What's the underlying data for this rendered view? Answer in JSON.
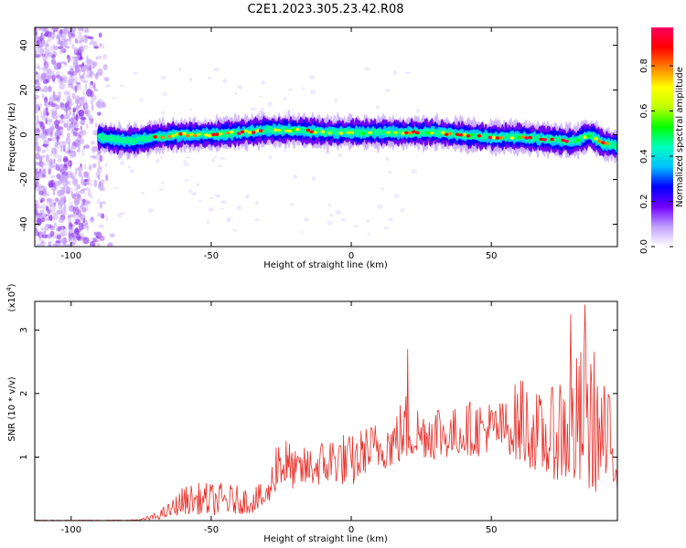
{
  "title": "C2E1.2023.305.23.42.R08",
  "chart_data": [
    {
      "type": "heatmap",
      "name": "spectrogram",
      "xlabel": "Height of straight line (km)",
      "ylabel": "Frequency (Hz)",
      "xlim": [
        -113,
        95
      ],
      "ylim": [
        -50,
        48
      ],
      "xticks": [
        -100,
        -50,
        0,
        50
      ],
      "yticks": [
        -40,
        -20,
        0,
        20,
        40
      ],
      "colorbar": {
        "label": "Normalized spectral amplitude",
        "range": [
          0,
          0.97
        ],
        "ticks": [
          0.0,
          0.2,
          0.4,
          0.6,
          0.8
        ],
        "tick_labels": [
          "0.0",
          "0.2",
          "0.4",
          "0.6",
          "0.8"
        ],
        "colormap": [
          "#ffffff",
          "#c0a0ff",
          "#7000ff",
          "#0000ff",
          "#00c0ff",
          "#00ffc0",
          "#00ff00",
          "#c0ff00",
          "#ffff00",
          "#ff8000",
          "#ff0000",
          "#ff0060"
        ]
      },
      "ridge": {
        "x": [
          -90,
          -80,
          -70,
          -60,
          -50,
          -40,
          -30,
          -20,
          -10,
          0,
          10,
          20,
          30,
          40,
          50,
          60,
          70,
          80,
          85,
          90,
          95
        ],
        "freq": [
          -1,
          -3,
          -1,
          0,
          0,
          1,
          2,
          2,
          1,
          1,
          1,
          1,
          1,
          0,
          -1,
          -1,
          -2,
          -3,
          0,
          -4,
          -5
        ]
      },
      "noise_region_x": [
        -113,
        -85
      ]
    },
    {
      "type": "line",
      "name": "snr",
      "xlabel": "Height of straight line (km)",
      "ylabel": "SNR (10 * v/v)",
      "multiplier": "(x10",
      "multiplier_exp": "4",
      "multiplier_close": ")",
      "xlim": [
        -113,
        95
      ],
      "ylim": [
        0,
        3.45
      ],
      "xticks": [
        -100,
        -50,
        0,
        50
      ],
      "yticks": [
        1,
        2,
        3
      ],
      "color": "#e8302a",
      "envelope": {
        "x": [
          -113,
          -80,
          -75,
          -70,
          -65,
          -60,
          -55,
          -50,
          -45,
          -40,
          -35,
          -30,
          -28,
          -26,
          -24,
          -20,
          -15,
          -10,
          -5,
          0,
          5,
          10,
          15,
          20,
          25,
          30,
          35,
          40,
          45,
          50,
          55,
          60,
          65,
          70,
          75,
          80,
          85,
          90,
          95
        ],
        "min": [
          0,
          0,
          0,
          0.01,
          0.05,
          0.1,
          0.1,
          0.08,
          0.1,
          0.1,
          0.12,
          0.2,
          0.4,
          0.5,
          0.5,
          0.5,
          0.55,
          0.55,
          0.6,
          0.5,
          0.75,
          0.8,
          0.85,
          0.95,
          1.0,
          0.95,
          1.0,
          1.05,
          1.0,
          1.1,
          1.1,
          0.9,
          0.8,
          0.7,
          0.6,
          0.5,
          0.4,
          0.5,
          0.45
        ],
        "max": [
          0.01,
          0.01,
          0.03,
          0.12,
          0.28,
          0.55,
          0.6,
          0.6,
          0.6,
          0.55,
          0.55,
          0.6,
          1.0,
          1.6,
          1.4,
          1.1,
          1.2,
          1.3,
          1.45,
          1.35,
          1.5,
          1.6,
          1.7,
          2.1,
          1.8,
          2.0,
          1.75,
          1.85,
          1.95,
          1.9,
          1.9,
          2.3,
          2.1,
          1.9,
          2.5,
          2.6,
          3.0,
          2.2,
          1.8
        ]
      },
      "spikes": [
        {
          "x": 20,
          "y": 2.7
        },
        {
          "x": 78.5,
          "y": 3.25
        },
        {
          "x": 83.5,
          "y": 3.4
        },
        {
          "x": 61,
          "y": 2.2
        }
      ]
    }
  ]
}
